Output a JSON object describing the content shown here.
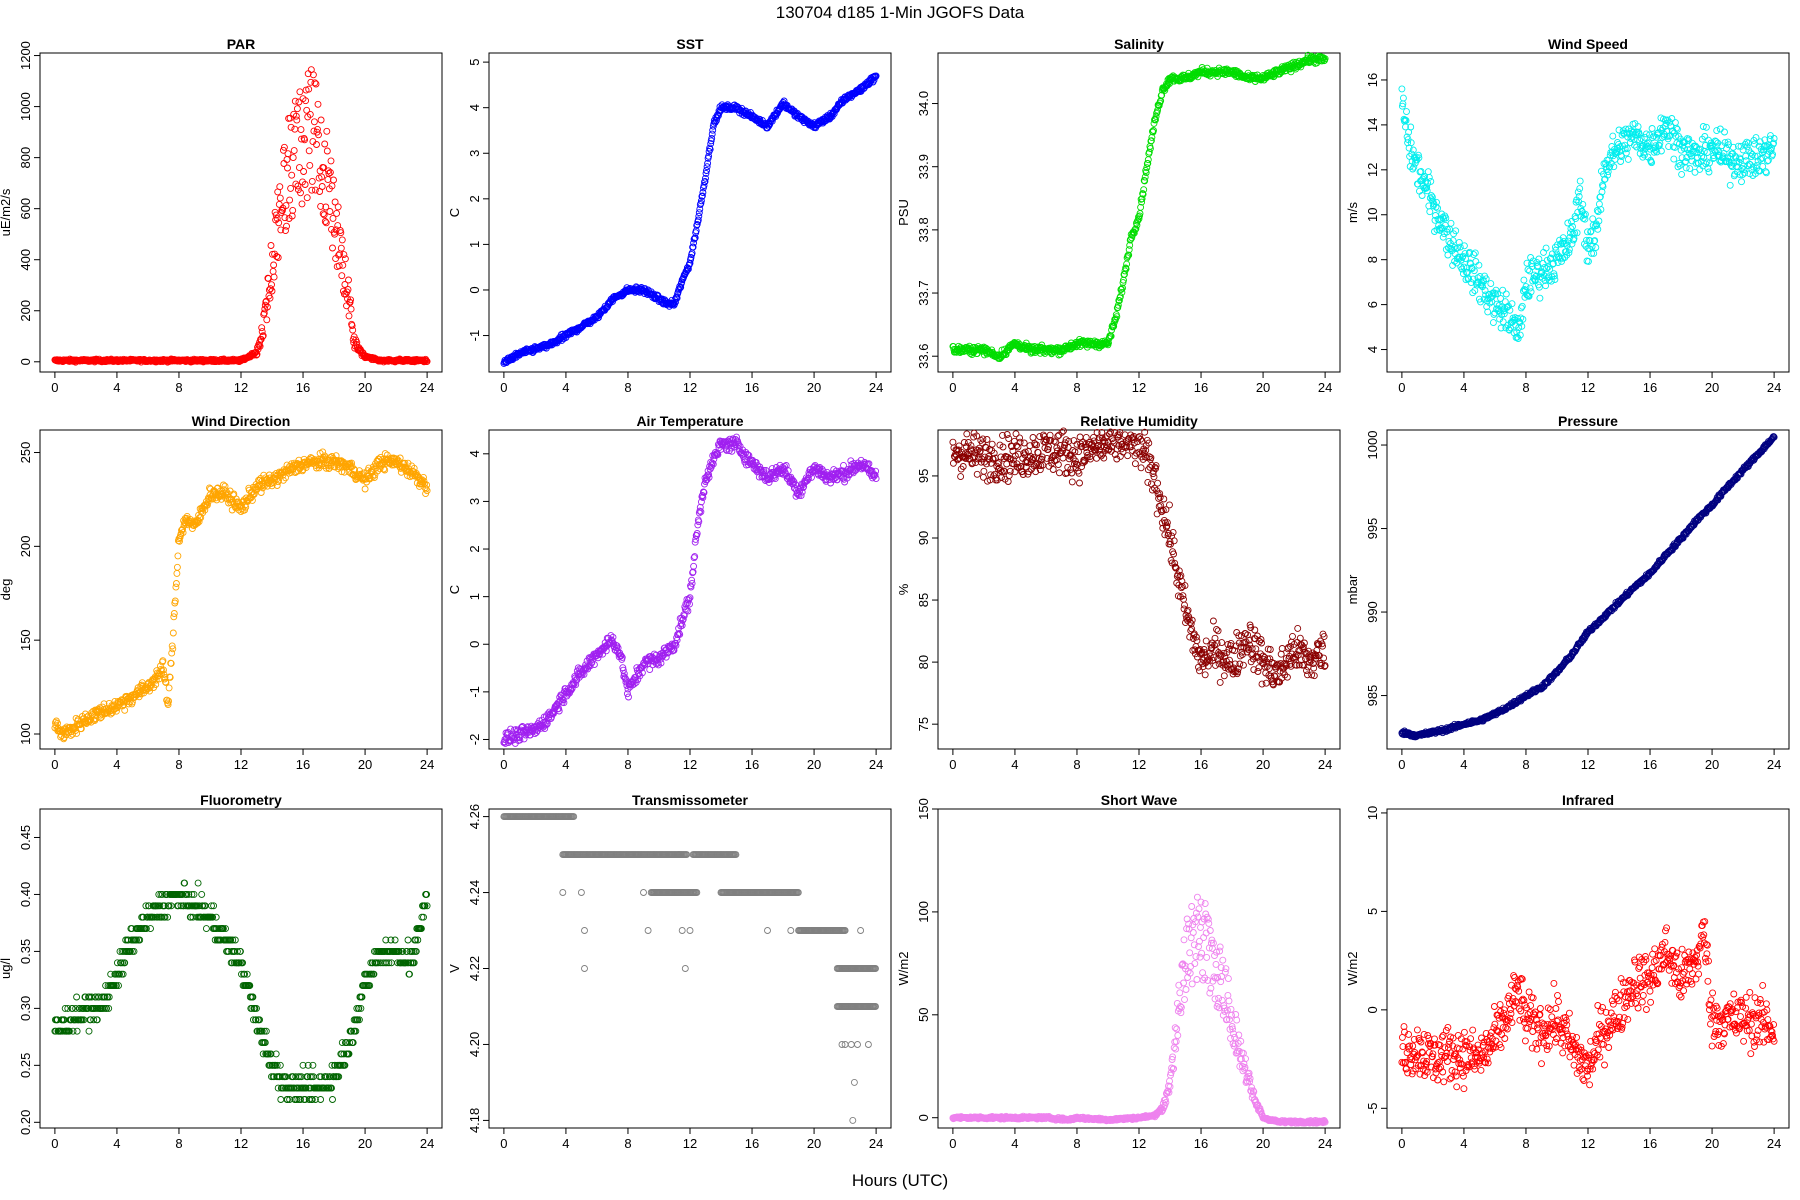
{
  "main_title": "130704   d185   1-Min  JGOFS Data",
  "x_axis_label": "Hours (UTC)",
  "chart_data": [
    {
      "type": "scatter",
      "title": "PAR",
      "ylabel": "uE/m2/s",
      "color": "#ff0000",
      "xlim": [
        0,
        24
      ],
      "xticks": [
        0,
        4,
        8,
        12,
        16,
        20,
        24
      ],
      "ylim": [
        -40,
        1210
      ],
      "yticks": [
        0,
        200,
        400,
        600,
        800,
        1000,
        1200
      ],
      "ytick_labels": [
        "0",
        "200",
        "400",
        "600",
        "800",
        "1000",
        "1200"
      ],
      "kind": "bell",
      "x": [
        0,
        2,
        4,
        6,
        8,
        10,
        12,
        12.5,
        13,
        13.3,
        13.6,
        14,
        14.5,
        15,
        15.5,
        16,
        16.5,
        17,
        17.5,
        18,
        18.5,
        19,
        19.3,
        19.6,
        20,
        21,
        22,
        24
      ],
      "y": [
        5,
        5,
        5,
        5,
        5,
        5,
        5,
        20,
        40,
        120,
        250,
        500,
        800,
        950,
        1050,
        1100,
        1150,
        1080,
        960,
        750,
        500,
        300,
        100,
        60,
        20,
        5,
        5,
        5
      ],
      "spread": 0.45
    },
    {
      "type": "scatter",
      "title": "SST",
      "ylabel": "C",
      "color": "#0000ff",
      "xlim": [
        0,
        24
      ],
      "xticks": [
        0,
        4,
        8,
        12,
        16,
        20,
        24
      ],
      "ylim": [
        -1.8,
        5.2
      ],
      "yticks": [
        -1,
        0,
        1,
        2,
        3,
        4,
        5
      ],
      "ytick_labels": [
        "-1",
        "0",
        "1",
        "2",
        "3",
        "4",
        "5"
      ],
      "kind": "line",
      "x": [
        0,
        1,
        2,
        3,
        4,
        5,
        6,
        7,
        8,
        9,
        10,
        10.5,
        11,
        11.5,
        12,
        12.5,
        13,
        13.5,
        14,
        15,
        16,
        17,
        18,
        19,
        20,
        21,
        22,
        23,
        24
      ],
      "y": [
        -1.6,
        -1.4,
        -1.3,
        -1.2,
        -1.0,
        -0.8,
        -0.6,
        -0.2,
        0.0,
        0.0,
        -0.2,
        -0.3,
        -0.3,
        0.2,
        0.6,
        1.5,
        2.5,
        3.6,
        4.0,
        4.0,
        3.8,
        3.6,
        4.1,
        3.8,
        3.6,
        3.8,
        4.2,
        4.4,
        4.7
      ],
      "spread": 0.06
    },
    {
      "type": "scatter",
      "title": "Salinity",
      "ylabel": "PSU",
      "color": "#00dd00",
      "xlim": [
        0,
        24
      ],
      "xticks": [
        0,
        4,
        8,
        12,
        16,
        20,
        24
      ],
      "ylim": [
        33.575,
        34.08
      ],
      "yticks": [
        33.6,
        33.7,
        33.8,
        33.9,
        34.0
      ],
      "ytick_labels": [
        "33.6",
        "33.7",
        "33.8",
        "33.9",
        "34.0"
      ],
      "kind": "line",
      "x": [
        0,
        1,
        2,
        3,
        4,
        5,
        6,
        7,
        8,
        9,
        10,
        10.5,
        11,
        11.5,
        12,
        12.5,
        13,
        13.5,
        14,
        15,
        16,
        17,
        18,
        19,
        20,
        21,
        22,
        23,
        24
      ],
      "y": [
        33.61,
        33.61,
        33.61,
        33.6,
        33.62,
        33.61,
        33.61,
        33.61,
        33.62,
        33.62,
        33.62,
        33.66,
        33.72,
        33.79,
        33.82,
        33.9,
        33.97,
        34.02,
        34.04,
        34.04,
        34.05,
        34.05,
        34.05,
        34.04,
        34.04,
        34.05,
        34.06,
        34.07,
        34.07
      ],
      "spread": 0.006
    },
    {
      "type": "scatter",
      "title": "Wind Speed",
      "ylabel": "m/s",
      "color": "#00eeee",
      "xlim": [
        0,
        24
      ],
      "xticks": [
        0,
        4,
        8,
        12,
        16,
        20,
        24
      ],
      "ylim": [
        3,
        17.2
      ],
      "yticks": [
        4,
        6,
        8,
        10,
        12,
        14,
        16
      ],
      "ytick_labels": [
        "4",
        "6",
        "8",
        "10",
        "12",
        "14",
        "16"
      ],
      "kind": "line",
      "x": [
        0,
        0.5,
        1,
        2,
        3,
        4,
        5,
        6,
        7,
        7.5,
        8,
        9,
        10,
        11,
        11.5,
        12,
        12.5,
        13,
        14,
        15,
        16,
        17,
        18,
        19,
        20,
        21,
        22,
        23,
        24
      ],
      "y": [
        15,
        13,
        12,
        10.5,
        9,
        8,
        7,
        6,
        5.5,
        4.5,
        7,
        7.5,
        8,
        9,
        11,
        8.5,
        9,
        12,
        13,
        13.5,
        13,
        14,
        13,
        12.5,
        13,
        12.5,
        12.5,
        12.5,
        13
      ],
      "spread": 0.9
    },
    {
      "type": "scatter",
      "title": "Wind Direction",
      "ylabel": "deg",
      "color": "#ffa500",
      "xlim": [
        0,
        24
      ],
      "xticks": [
        0,
        4,
        8,
        12,
        16,
        20,
        24
      ],
      "ylim": [
        92,
        262
      ],
      "yticks": [
        100,
        150,
        200,
        250
      ],
      "ytick_labels": [
        "100",
        "150",
        "200",
        "250"
      ],
      "kind": "line",
      "x": [
        0,
        0.5,
        1,
        2,
        3,
        4,
        5,
        6,
        7,
        7.3,
        7.6,
        8,
        8.5,
        9,
        10,
        11,
        12,
        13,
        14,
        15,
        16,
        17,
        18,
        19,
        20,
        21,
        22,
        23,
        24
      ],
      "y": [
        105,
        100,
        102,
        108,
        112,
        115,
        120,
        125,
        135,
        115,
        150,
        205,
        215,
        210,
        228,
        228,
        220,
        232,
        235,
        240,
        244,
        245,
        245,
        242,
        235,
        245,
        245,
        240,
        232
      ],
      "spread": 4
    },
    {
      "type": "scatter",
      "title": "Air Temperature",
      "ylabel": "C",
      "color": "#a020f0",
      "xlim": [
        0,
        24
      ],
      "xticks": [
        0,
        4,
        8,
        12,
        16,
        20,
        24
      ],
      "ylim": [
        -2.2,
        4.5
      ],
      "yticks": [
        -2,
        -1,
        0,
        1,
        2,
        3,
        4
      ],
      "ytick_labels": [
        "-2",
        "-1",
        "0",
        "1",
        "2",
        "3",
        "4"
      ],
      "kind": "line",
      "x": [
        0,
        1,
        2,
        3,
        4,
        5,
        6,
        7,
        7.5,
        8,
        9,
        10,
        11,
        11.5,
        12,
        12.5,
        13,
        14,
        15,
        16,
        17,
        18,
        19,
        20,
        21,
        22,
        23,
        24
      ],
      "y": [
        -2.0,
        -1.9,
        -1.8,
        -1.5,
        -1.0,
        -0.6,
        -0.2,
        0.1,
        -0.2,
        -1.0,
        -0.4,
        -0.3,
        0.0,
        0.5,
        1.0,
        2.5,
        3.5,
        4.2,
        4.2,
        3.8,
        3.5,
        3.7,
        3.2,
        3.7,
        3.5,
        3.6,
        3.8,
        3.5
      ],
      "spread": 0.15
    },
    {
      "type": "scatter",
      "title": "Relative Humidity",
      "ylabel": "%",
      "color": "#8b0000",
      "xlim": [
        0,
        24
      ],
      "xticks": [
        0,
        4,
        8,
        12,
        16,
        20,
        24
      ],
      "ylim": [
        73,
        98.7
      ],
      "yticks": [
        75,
        80,
        85,
        90,
        95
      ],
      "ytick_labels": [
        "75",
        "80",
        "85",
        "90",
        "95"
      ],
      "kind": "line",
      "x": [
        0,
        1,
        2,
        3,
        4,
        5,
        6,
        7,
        8,
        9,
        10,
        11,
        12,
        13,
        14,
        14.5,
        15,
        15.5,
        16,
        17,
        18,
        19,
        20,
        21,
        22,
        23,
        24
      ],
      "y": [
        97,
        96.8,
        96.5,
        96.5,
        96.5,
        96.8,
        97,
        97,
        96.5,
        97.2,
        97.5,
        97.8,
        97.5,
        95,
        90,
        87,
        84,
        82,
        80,
        81,
        80,
        82,
        80,
        79,
        81,
        80,
        81
      ],
      "spread": 1.8
    },
    {
      "type": "scatter",
      "title": "Pressure",
      "ylabel": "mbar",
      "color": "#000080",
      "xlim": [
        0,
        24
      ],
      "xticks": [
        0,
        4,
        8,
        12,
        16,
        20,
        24
      ],
      "ylim": [
        981.8,
        1000.9
      ],
      "yticks": [
        985,
        990,
        995,
        1000
      ],
      "ytick_labels": [
        "985",
        "990",
        "995",
        "1000"
      ],
      "kind": "line",
      "x": [
        0,
        1,
        2,
        3,
        4,
        5,
        6,
        7,
        8,
        9,
        10,
        11,
        12,
        13,
        14,
        15,
        16,
        17,
        18,
        19,
        20,
        21,
        22,
        23,
        24
      ],
      "y": [
        982.8,
        982.6,
        982.8,
        983.0,
        983.3,
        983.5,
        983.9,
        984.4,
        985.0,
        985.5,
        986.4,
        987.5,
        988.8,
        989.7,
        990.6,
        991.5,
        992.3,
        993.4,
        994.4,
        995.5,
        996.4,
        997.5,
        998.5,
        999.5,
        1000.5
      ],
      "spread": 0.12
    },
    {
      "type": "scatter",
      "title": "Fluorometry",
      "ylabel": "ug/l",
      "color": "#006400",
      "xlim": [
        0,
        24
      ],
      "xticks": [
        0,
        4,
        8,
        12,
        16,
        20,
        24
      ],
      "ylim": [
        0.195,
        0.475
      ],
      "yticks": [
        0.2,
        0.25,
        0.3,
        0.35,
        0.4,
        0.45
      ],
      "ytick_labels": [
        "0.20",
        "0.25",
        "0.30",
        "0.35",
        "0.40",
        "0.45"
      ],
      "kind": "line",
      "x": [
        0,
        1,
        2,
        3,
        4,
        5,
        6,
        7,
        8,
        9,
        10,
        11,
        12,
        13,
        14,
        15,
        16,
        17,
        18,
        19,
        20,
        21,
        22,
        23,
        24
      ],
      "y": [
        0.28,
        0.29,
        0.3,
        0.3,
        0.33,
        0.36,
        0.38,
        0.39,
        0.4,
        0.39,
        0.38,
        0.36,
        0.34,
        0.29,
        0.25,
        0.23,
        0.23,
        0.23,
        0.24,
        0.27,
        0.32,
        0.35,
        0.35,
        0.34,
        0.4
      ],
      "spread": 0.012,
      "quant": 0.01
    },
    {
      "type": "scatter",
      "title": "Transmissometer",
      "ylabel": "V",
      "color": "#808080",
      "xlim": [
        0,
        24
      ],
      "xticks": [
        0,
        4,
        8,
        12,
        16,
        20,
        24
      ],
      "ylim": [
        4.178,
        4.262
      ],
      "yticks": [
        4.18,
        4.2,
        4.22,
        4.24,
        4.26
      ],
      "ytick_labels": [
        "4.18",
        "4.20",
        "4.22",
        "4.24",
        "4.26"
      ],
      "kind": "steps",
      "segments": [
        [
          0,
          4.5,
          4.26
        ],
        [
          3.8,
          11.8,
          4.25
        ],
        [
          9.5,
          12.5,
          4.24
        ],
        [
          12.2,
          15,
          4.25
        ],
        [
          14,
          19,
          4.24
        ],
        [
          19,
          22,
          4.23
        ],
        [
          21.5,
          24,
          4.22
        ],
        [
          21.5,
          24,
          4.21
        ]
      ],
      "outliers": [
        [
          3.8,
          4.24
        ],
        [
          5.0,
          4.24
        ],
        [
          5.2,
          4.23
        ],
        [
          5.2,
          4.22
        ],
        [
          9.0,
          4.24
        ],
        [
          9.3,
          4.23
        ],
        [
          11.5,
          4.23
        ],
        [
          11.7,
          4.22
        ],
        [
          11.3,
          4.25
        ],
        [
          12.0,
          4.23
        ],
        [
          17.0,
          4.23
        ],
        [
          18.5,
          4.23
        ],
        [
          21.8,
          4.2
        ],
        [
          22.0,
          4.2
        ],
        [
          22.4,
          4.2
        ],
        [
          22.6,
          4.19
        ],
        [
          22.8,
          4.2
        ],
        [
          23.0,
          4.23
        ],
        [
          22.5,
          4.18
        ],
        [
          23.5,
          4.2
        ],
        [
          23.8,
          4.21
        ]
      ]
    },
    {
      "type": "scatter",
      "title": "Short Wave",
      "ylabel": "W/m2",
      "color": "#ee82ee",
      "xlim": [
        0,
        24
      ],
      "xticks": [
        0,
        4,
        8,
        12,
        16,
        20,
        24
      ],
      "ylim": [
        -5,
        150
      ],
      "yticks": [
        0,
        50,
        100,
        150
      ],
      "ytick_labels": [
        "0",
        "50",
        "100",
        "150"
      ],
      "kind": "bell",
      "x": [
        0,
        2,
        4,
        6,
        7.5,
        8,
        10,
        12,
        13,
        13.5,
        14,
        14.5,
        15,
        15.5,
        16,
        16.5,
        17,
        17.5,
        18,
        18.5,
        19,
        19.5,
        20,
        21,
        22,
        24
      ],
      "y": [
        0,
        0,
        0,
        0,
        -1,
        0,
        -1,
        0,
        1,
        5,
        20,
        60,
        95,
        105,
        110,
        100,
        90,
        80,
        60,
        40,
        25,
        10,
        0,
        -2,
        -2,
        -2
      ],
      "spread": 0.4
    },
    {
      "type": "scatter",
      "title": "Infrared",
      "ylabel": "W/m2",
      "color": "#ff0000",
      "xlim": [
        0,
        24
      ],
      "xticks": [
        0,
        4,
        8,
        12,
        16,
        20,
        24
      ],
      "ylim": [
        -6,
        10.2
      ],
      "yticks": [
        -5,
        0,
        5,
        10
      ],
      "ytick_labels": [
        "-5",
        "0",
        "5",
        "10"
      ],
      "kind": "line",
      "x": [
        0,
        1,
        2,
        3,
        4,
        5,
        6,
        7,
        7.5,
        8,
        9,
        10,
        11,
        12,
        13,
        14,
        15,
        16,
        17,
        18,
        19,
        19.5,
        20,
        21,
        22,
        23,
        24
      ],
      "y": [
        -2,
        -2,
        -2.5,
        -2.2,
        -2.3,
        -2.5,
        -1.5,
        0,
        1,
        -0.5,
        -1,
        -0.5,
        -2,
        -3,
        -1,
        0,
        1.5,
        1.5,
        3,
        1.5,
        2.5,
        4,
        -0.5,
        -0.5,
        -0.5,
        -0.5,
        -1
      ],
      "spread": 1.4
    }
  ]
}
